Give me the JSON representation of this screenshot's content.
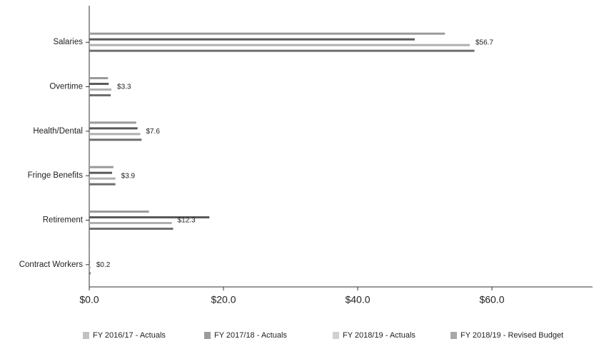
{
  "chart_data": {
    "type": "bar",
    "orientation": "horizontal",
    "categories": [
      "Salaries",
      "Overtime",
      "Health/Dental",
      "Fringe Benefits",
      "Retirement",
      "Contract Workers"
    ],
    "series": [
      {
        "name": "FY 2016/17 - Actuals",
        "color": "#9a9a9a",
        "values": [
          53.0,
          2.8,
          7.0,
          3.6,
          8.9,
          0.1
        ]
      },
      {
        "name": "FY 2017/18 - Actuals",
        "color": "#5a5a5a",
        "values": [
          48.5,
          2.9,
          7.2,
          3.4,
          17.9,
          0.1
        ]
      },
      {
        "name": "FY 2018/19 - Actuals",
        "color": "#b0b0b0",
        "values": [
          56.7,
          3.3,
          7.6,
          3.9,
          12.3,
          0.2
        ],
        "value_labels": [
          "$56.7",
          "$3.3",
          "$7.6",
          "$3.9",
          "$12.3",
          "$0.2"
        ]
      },
      {
        "name": "FY 2018/19 - Revised Budget",
        "color": "#6e6e6e",
        "values": [
          57.4,
          3.2,
          7.8,
          3.9,
          12.5,
          0.2
        ]
      }
    ],
    "xlim": [
      0,
      75
    ],
    "xticks": [
      {
        "value": 0,
        "label": "$0.0"
      },
      {
        "value": 20,
        "label": "$20.0"
      },
      {
        "value": 40,
        "label": "$40.0"
      },
      {
        "value": 60,
        "label": "$60.0"
      }
    ],
    "legend": "bottom"
  }
}
